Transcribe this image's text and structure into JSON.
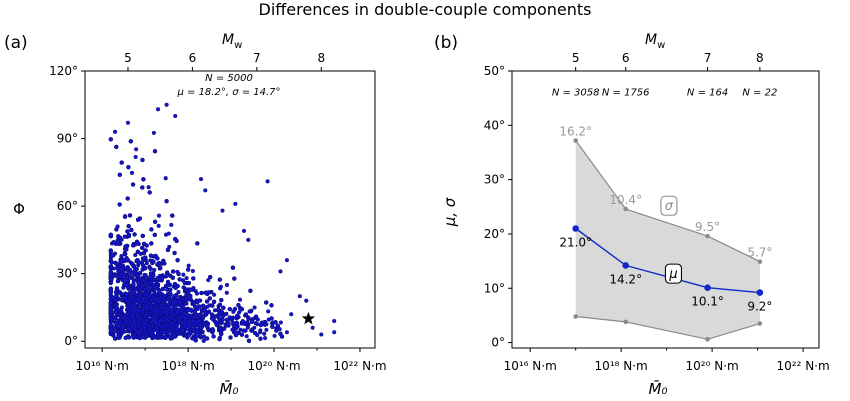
{
  "figure_title": "Differences in double-couple components",
  "chart_data": [
    {
      "panel_label": "(a)",
      "type": "scatter",
      "annotation": {
        "n": "N = 5000",
        "stats": "μ = 18.2°,  σ = 14.7°"
      },
      "xlabel": "M̄₀",
      "x_scale": "log",
      "xlim_exp": [
        15.6,
        22.35
      ],
      "x_tick_exponents": [
        16,
        18,
        20,
        22
      ],
      "x_tick_labels": [
        "10¹⁶ N·m",
        "10¹⁸ N·m",
        "10²⁰ N·m",
        "10²² N·m"
      ],
      "top_axis_label": "Mw",
      "top_ticks": [
        5,
        6,
        7,
        8
      ],
      "ylabel": "Φ",
      "ylim": [
        -3,
        120
      ],
      "y_ticks": [
        0,
        30,
        60,
        90,
        120
      ],
      "y_tick_labels": [
        "0°",
        "30°",
        "60°",
        "90°",
        "120°"
      ],
      "point_color": "#1414c8",
      "point_count": 5000,
      "star_point": {
        "x_exp": 20.8,
        "y": 10
      },
      "outliers": [
        {
          "x_exp": 17.5,
          "y": 105
        },
        {
          "x_exp": 17.3,
          "y": 103
        },
        {
          "x_exp": 17.7,
          "y": 100
        },
        {
          "x_exp": 19.85,
          "y": 71
        },
        {
          "x_exp": 19.1,
          "y": 61
        },
        {
          "x_exp": 18.8,
          "y": 58
        },
        {
          "x_exp": 19.3,
          "y": 49
        },
        {
          "x_exp": 19.4,
          "y": 45
        },
        {
          "x_exp": 20.3,
          "y": 36
        },
        {
          "x_exp": 20.15,
          "y": 31
        },
        {
          "x_exp": 20.6,
          "y": 20
        },
        {
          "x_exp": 20.75,
          "y": 18
        },
        {
          "x_exp": 21.4,
          "y": 9
        },
        {
          "x_exp": 21.4,
          "y": 4
        },
        {
          "x_exp": 21.1,
          "y": 3
        },
        {
          "x_exp": 20.9,
          "y": 6
        },
        {
          "x_exp": 20.4,
          "y": 12
        },
        {
          "x_exp": 20.3,
          "y": 4
        },
        {
          "x_exp": 19.95,
          "y": 8
        },
        {
          "x_exp": 16.3,
          "y": 93
        },
        {
          "x_exp": 16.6,
          "y": 97
        },
        {
          "x_exp": 18.3,
          "y": 72
        },
        {
          "x_exp": 18.4,
          "y": 67
        }
      ]
    },
    {
      "panel_label": "(b)",
      "type": "line",
      "xlabel": "M̄₀",
      "x_scale": "log",
      "xlim_exp": [
        15.6,
        22.35
      ],
      "x_tick_exponents": [
        16,
        18,
        20,
        22
      ],
      "x_tick_labels": [
        "10¹⁶ N·m",
        "10¹⁸ N·m",
        "10²⁰ N·m",
        "10²² N·m"
      ],
      "top_axis_label": "Mw",
      "top_ticks": [
        5,
        6,
        7,
        8
      ],
      "ylabel": "μ, σ",
      "ylim": [
        -1,
        50
      ],
      "y_ticks": [
        0,
        10,
        20,
        30,
        40,
        50
      ],
      "y_tick_labels": [
        "0°",
        "10°",
        "20°",
        "30°",
        "40°",
        "50°"
      ],
      "bin_counts": [
        "N = 3058",
        "N = 1756",
        "N = 164",
        "N = 22"
      ],
      "x_exp": [
        17.0,
        18.1,
        19.9,
        21.05
      ],
      "mean": [
        21.0,
        14.2,
        10.1,
        9.2
      ],
      "mean_labels": [
        "21.0°",
        "14.2°",
        "10.1°",
        "9.2°"
      ],
      "sigma": [
        16.2,
        10.4,
        9.5,
        5.7
      ],
      "sigma_labels": [
        "16.2°",
        "10.4°",
        "9.5°",
        "5.7°"
      ],
      "mean_series_name": "μ",
      "sigma_series_name": "σ",
      "mean_color": "#1428c8",
      "band_color": "#d9d9d9",
      "band_edge_color": "#8a8a8a",
      "sigma_label_color": "#9a9a9a"
    }
  ]
}
